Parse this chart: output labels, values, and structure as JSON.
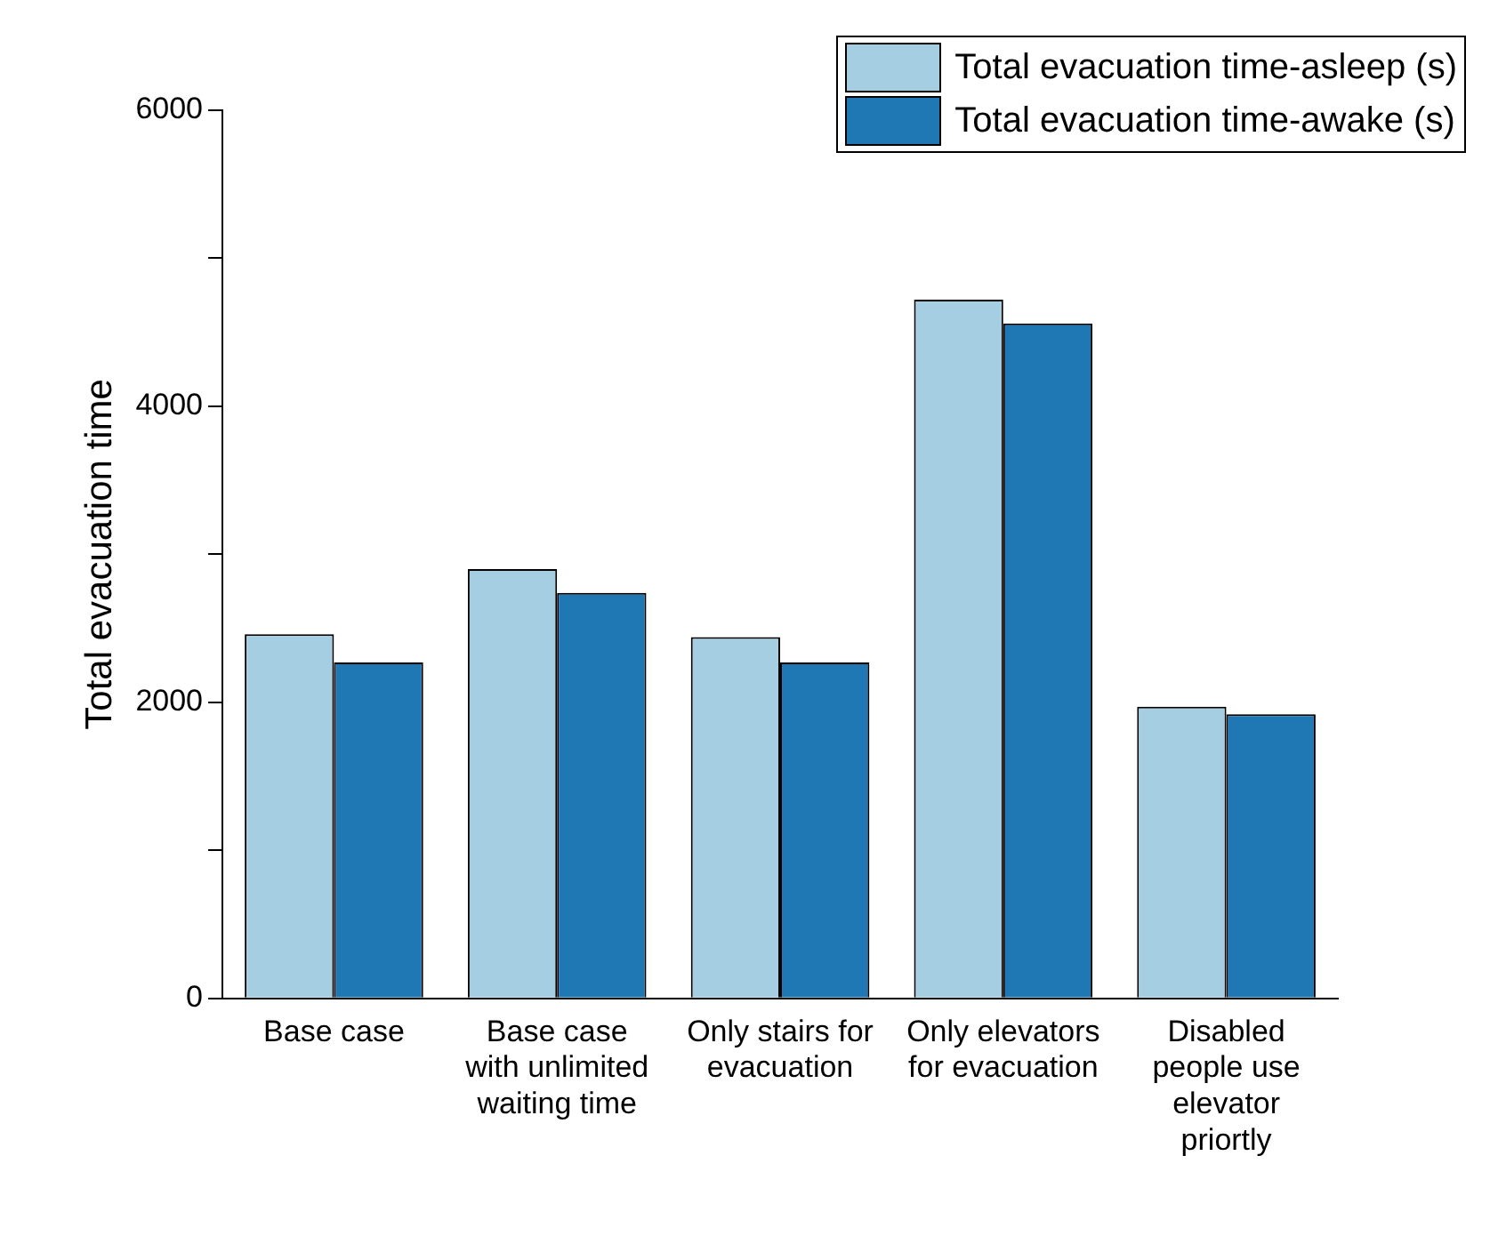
{
  "chart_data": {
    "type": "bar",
    "ylabel": "Total evacuation time",
    "categories": [
      "Base case",
      "Base case with unlimited waiting time",
      "Only stairs for evacuation",
      "Only elevators for evacuation",
      "Disabled people use elevator priortly"
    ],
    "series": [
      {
        "name": "Total evacuation time-asleep (s)",
        "color": "#a6cee3",
        "values": [
          2460,
          2900,
          2440,
          4720,
          1970
        ]
      },
      {
        "name": "Total evacuation time-awake (s)",
        "color": "#1f78b4",
        "values": [
          2270,
          2740,
          2270,
          4560,
          1920
        ]
      }
    ],
    "ylim": [
      0,
      6000
    ],
    "yticks": [
      0,
      {
        "value": 1000,
        "label": null
      },
      2000,
      {
        "value": 3000,
        "label": null
      },
      4000,
      {
        "value": 5000,
        "label": null
      },
      6000
    ],
    "grid": false,
    "legend": "top right"
  }
}
